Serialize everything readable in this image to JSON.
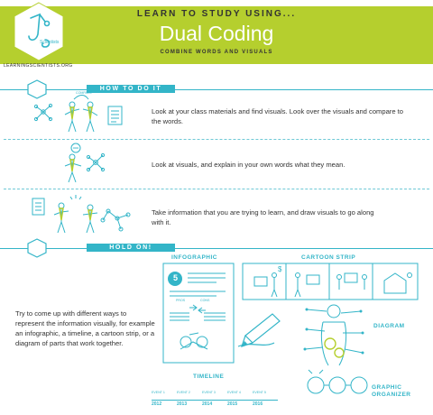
{
  "header": {
    "pre_title": "LEARN TO STUDY USING...",
    "title": "Dual Coding",
    "subtitle": "COMBINE WORDS AND VISUALS",
    "site": "LEARNINGSCIENTISTS.ORG"
  },
  "section_how": {
    "label": "HOW TO DO IT",
    "compare_label": "COMPARE",
    "steps": [
      {
        "text": "Look at your class materials and find visuals. Look over the visuals and compare to the words.",
        "icon": "compare-people-icon"
      },
      {
        "text": "Look at visuals, and explain in your own words what they mean.",
        "icon": "explain-visual-icon"
      },
      {
        "text": "Take information that you are trying to learn, and draw visuals to go along with it.",
        "icon": "draw-visual-icon"
      }
    ]
  },
  "section_hold": {
    "label": "HOLD ON!",
    "text": "Try to come up with different ways to represent the information visually, for example an infographic, a timeline, a cartoon strip, or a diagram of parts that work together.",
    "infographic": {
      "label": "INFOGRAPHIC",
      "number": "5",
      "pros": "PROS",
      "cons": "CONS"
    },
    "cartoon_strip": {
      "label": "CARTOON STRIP"
    },
    "diagram": {
      "label": "DIAGRAM"
    },
    "graphic_organizer": {
      "label_line1": "GRAPHIC",
      "label_line2": "ORGANIZER"
    },
    "timeline": {
      "label": "TIMELINE",
      "events": [
        "EVENT 1",
        "EVENT 2",
        "EVENT 3",
        "EVENT 4",
        "EVENT 5"
      ],
      "years": [
        "2012",
        "2013",
        "2014",
        "2015",
        "2016"
      ]
    }
  },
  "colors": {
    "accent_green": "#b5cf2e",
    "accent_cyan": "#33b5c8",
    "text": "#333333"
  }
}
